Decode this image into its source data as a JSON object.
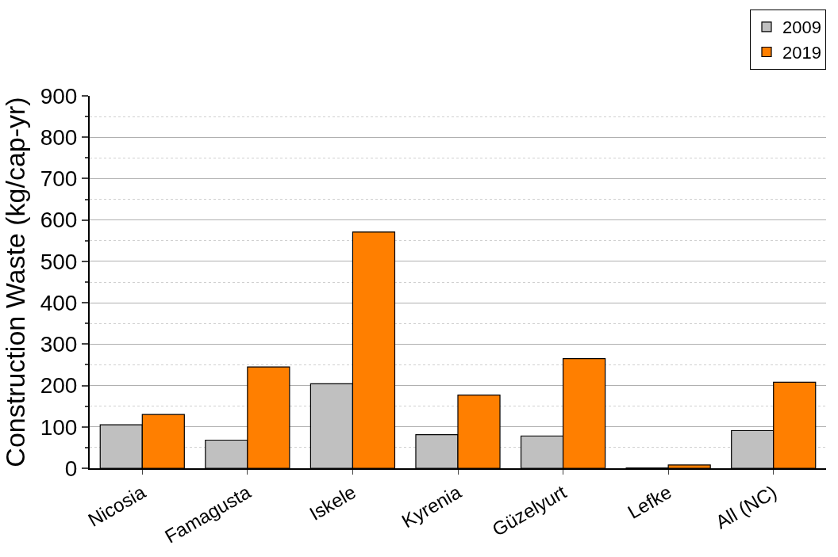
{
  "chart_data": {
    "type": "bar",
    "ylabel": "Construction Waste (kg/cap-yr)",
    "categories": [
      "Nicosia",
      "Famagusta",
      "Iskele",
      "Kyrenia",
      "Güzelyurt",
      "Lefke",
      "All (NC)"
    ],
    "series": [
      {
        "name": "2009",
        "color": "#c0c0c0",
        "values": [
          105,
          68,
          204,
          81,
          78,
          1,
          91
        ]
      },
      {
        "name": "2019",
        "color": "#ff7f00",
        "values": [
          130,
          245,
          571,
          177,
          265,
          8,
          208
        ]
      }
    ],
    "ylim": [
      0,
      900
    ],
    "yticks": [
      0,
      100,
      200,
      300,
      400,
      500,
      600,
      700,
      800,
      900
    ],
    "grid": "y",
    "legend": "top right"
  }
}
